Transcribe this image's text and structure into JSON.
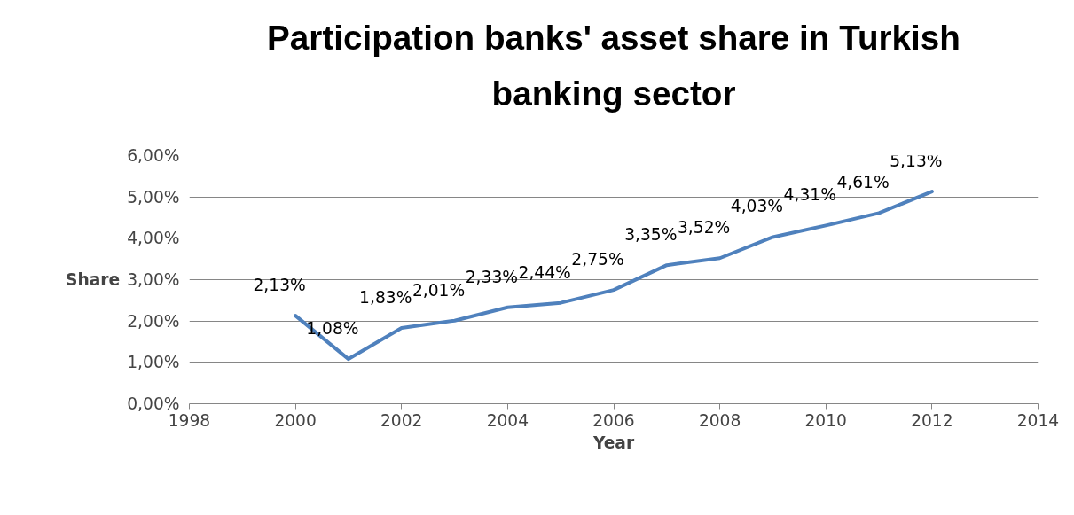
{
  "chart_data": {
    "type": "line",
    "title": "Participation banks' asset share in Turkish banking sector",
    "xlabel": "Year",
    "ylabel": "Share",
    "x": [
      2000,
      2001,
      2002,
      2003,
      2004,
      2005,
      2006,
      2007,
      2008,
      2009,
      2010,
      2011,
      2012
    ],
    "series": [
      {
        "color": "#4f81bd",
        "values": [
          2.13,
          1.08,
          1.83,
          2.01,
          2.33,
          2.44,
          2.75,
          3.35,
          3.52,
          4.03,
          4.31,
          4.61,
          5.13
        ],
        "value_labels": [
          "2,13%",
          "1,08%",
          "1,83%",
          "2,01%",
          "2,33%",
          "2,44%",
          "2,75%",
          "3,35%",
          "3,52%",
          "4,03%",
          "4,31%",
          "4,61%",
          "5,13%"
        ]
      }
    ],
    "xlim": [
      1998,
      2014
    ],
    "xticks": [
      1998,
      2000,
      2002,
      2004,
      2006,
      2008,
      2010,
      2012,
      2014
    ],
    "ylim": [
      0,
      6
    ],
    "yticks": [
      {
        "value": 0,
        "label": "0,00%"
      },
      {
        "value": 1,
        "label": "1,00%"
      },
      {
        "value": 2,
        "label": "2,00%"
      },
      {
        "value": 3,
        "label": "3,00%"
      },
      {
        "value": 4,
        "label": "4,00%"
      },
      {
        "value": 5,
        "label": "5,00%"
      },
      {
        "value": 6,
        "label": "6,00%"
      }
    ],
    "grid": "y",
    "marker": "none",
    "line_style": "solid"
  }
}
